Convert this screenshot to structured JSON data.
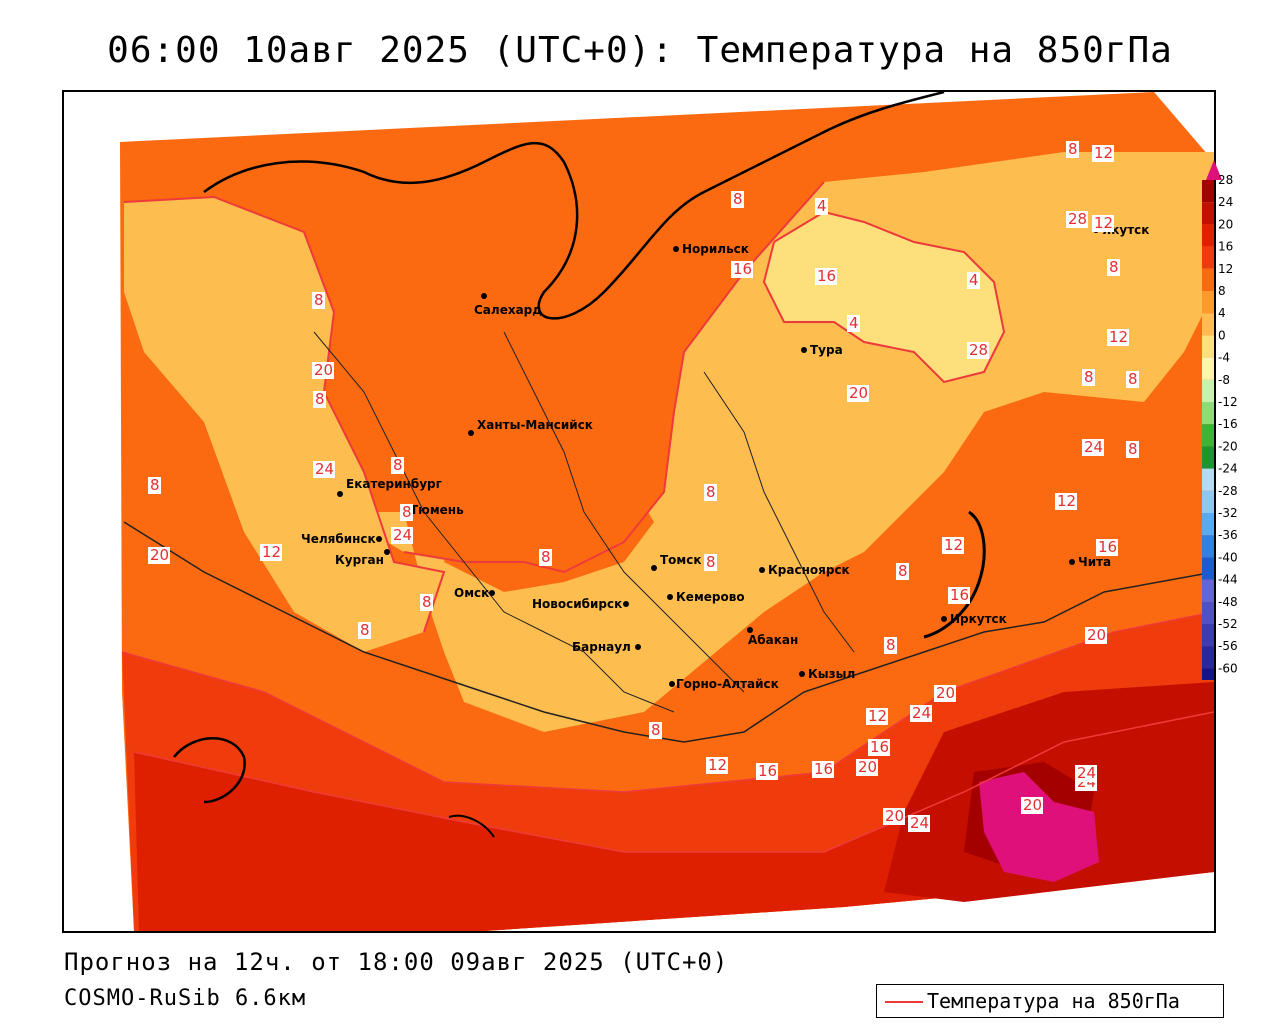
{
  "title": "06:00 10авг 2025 (UTC+0): Температура на 850гПа",
  "footer": {
    "forecast": "Прогноз на 12ч. от 18:00 09авг 2025 (UTC+0)",
    "model": "COSMO-RuSib 6.6км"
  },
  "legend": {
    "label": "Температура на 850гПа",
    "color": "#ee3a3a"
  },
  "colorbar": {
    "ticks": [
      "28",
      "24",
      "20",
      "16",
      "12",
      "8",
      "4",
      "0",
      "-4",
      "-8",
      "-12",
      "-16",
      "-20",
      "-24",
      "-28",
      "-32",
      "-36",
      "-40",
      "-44",
      "-48",
      "-52",
      "-56",
      "-60"
    ],
    "colors": [
      "#a50000",
      "#c40e00",
      "#de2000",
      "#f03c0c",
      "#fb6a10",
      "#fd9a2a",
      "#fdbd4f",
      "#fde07c",
      "#fff5b0",
      "#c8f0b0",
      "#8cdc7c",
      "#3cb43c",
      "#1a9632",
      "#b4dcf0",
      "#8cc8f0",
      "#5aaaf0",
      "#3280e6",
      "#1e5ad2",
      "#6464dc",
      "#5050c8",
      "#3c3cb4",
      "#2828a0",
      "#14148c"
    ],
    "top_arrow_color": "#e0107a"
  },
  "cities": [
    {
      "name": "Норильск"
    },
    {
      "name": "Якутск"
    },
    {
      "name": "Салехард"
    },
    {
      "name": "Тура"
    },
    {
      "name": "Ханты-Мансийск"
    },
    {
      "name": "Екатеринбург"
    },
    {
      "name": "Тюмень"
    },
    {
      "name": "Челябинск"
    },
    {
      "name": "Курган"
    },
    {
      "name": "Омск"
    },
    {
      "name": "Новосибирск"
    },
    {
      "name": "Томск"
    },
    {
      "name": "Кемерово"
    },
    {
      "name": "Красноярск"
    },
    {
      "name": "Барнаул"
    },
    {
      "name": "Абакан"
    },
    {
      "name": "Горно-Алтайск"
    },
    {
      "name": "Кызыл"
    },
    {
      "name": "Иркутск"
    },
    {
      "name": "Чита"
    }
  ],
  "isotherm_labels": [
    "8",
    "12",
    "8",
    "4",
    "8",
    "4",
    "4",
    "8",
    "8",
    "8",
    "8",
    "8",
    "8",
    "8",
    "12",
    "8",
    "8",
    "12",
    "12",
    "16",
    "8",
    "16",
    "8",
    "8",
    "20",
    "8",
    "20",
    "24",
    "12",
    "8",
    "16",
    "16",
    "12",
    "16",
    "20",
    "24",
    "20",
    "20",
    "24",
    "24",
    "28",
    "12",
    "16",
    "16",
    "12",
    "28",
    "20",
    "20",
    "24",
    "24",
    "20",
    "24",
    "8",
    "8"
  ]
}
